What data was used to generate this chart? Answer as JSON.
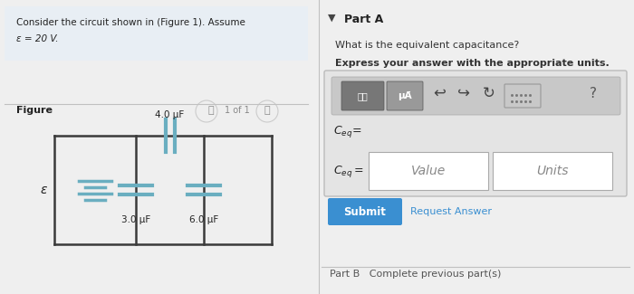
{
  "bg_left": "#e8eef4",
  "bg_right": "#efefef",
  "bg_white": "#ffffff",
  "header_text": "Consider the circuit shown in (Figure 1). Assume",
  "header_text2": "ε = 20 V.",
  "figure_label": "Figure",
  "nav_text": "1 of 1",
  "part_a_label": "Part A",
  "question1": "What is the equivalent capacitance?",
  "question2": "Express your answer with the appropriate units.",
  "cap1_label": "4.0 μF",
  "cap2_label": "3.0 μF",
  "cap3_label": "6.0 μF",
  "emf_label": "ε",
  "value_placeholder": "Value",
  "units_placeholder": "Units",
  "submit_btn_color": "#3a8fd1",
  "submit_btn_text": "Submit",
  "request_answer_text": "Request Answer",
  "part_b_text": "Part B   Complete previous part(s)",
  "divider_color": "#c0c0c0",
  "circuit_line_color": "#3a3a3a",
  "cap_color": "#6aaec0",
  "battery_color": "#6aaec0",
  "toolbar_bg": "#cccccc",
  "toolbar_btn_dark": "#777777",
  "toolbar_btn_light": "#bbbbbb"
}
